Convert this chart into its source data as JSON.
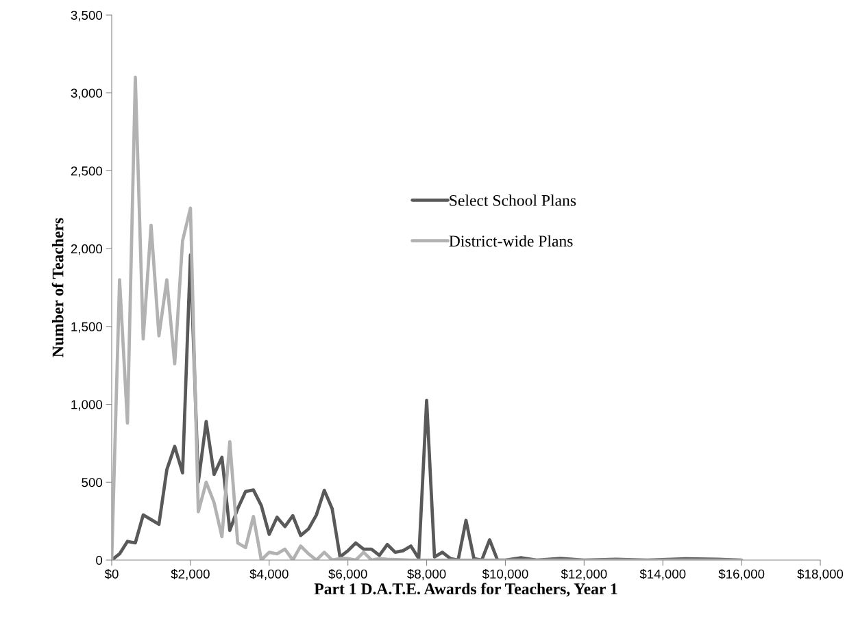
{
  "chart_data": {
    "type": "line",
    "xlabel": "Part 1 D.A.T.E. Awards for Teachers, Year 1",
    "ylabel": "Number of Teachers",
    "xlim": [
      0,
      18000
    ],
    "xticks": [
      {
        "value": 0,
        "label": "$0"
      },
      {
        "value": 2000,
        "label": "$2,000"
      },
      {
        "value": 4000,
        "label": "$4,000"
      },
      {
        "value": 6000,
        "label": "$6,000"
      },
      {
        "value": 8000,
        "label": "$8,000"
      },
      {
        "value": 10000,
        "label": "$10,000"
      },
      {
        "value": 12000,
        "label": "$12,000"
      },
      {
        "value": 14000,
        "label": "$14,000"
      },
      {
        "value": 16000,
        "label": "$16,000"
      },
      {
        "value": 18000,
        "label": "$18,000"
      }
    ],
    "ylim": [
      0,
      3500
    ],
    "yticks": [
      0,
      500,
      {
        "value": 1000,
        "label": "1,000"
      },
      {
        "value": 1500,
        "label": "1,500"
      },
      {
        "value": 2000,
        "label": "2,000"
      },
      {
        "value": 2500,
        "label": "2,500"
      },
      {
        "value": 3000,
        "label": "3,000"
      },
      {
        "value": 3500,
        "label": "3,500"
      }
    ],
    "grid": false,
    "legend": "center",
    "marker": "none",
    "line_style": "solid",
    "series": [
      {
        "name": "Select School Plans",
        "color": "#595959",
        "x": [
          0,
          200,
          400,
          600,
          800,
          1000,
          1200,
          1400,
          1600,
          1800,
          2000,
          2200,
          2400,
          2600,
          2800,
          3000,
          3200,
          3400,
          3600,
          3800,
          4000,
          4200,
          4400,
          4600,
          4800,
          5000,
          5200,
          5400,
          5600,
          5800,
          6000,
          6200,
          6400,
          6600,
          6800,
          7000,
          7200,
          7400,
          7600,
          7800,
          8000,
          8200,
          8400,
          8600,
          8800,
          9000,
          9200,
          9400,
          9600,
          9800,
          10000,
          10400,
          10800,
          11400,
          12000,
          12800,
          13600,
          14600,
          15400,
          16000
        ],
        "values": [
          0,
          40,
          120,
          110,
          290,
          260,
          230,
          580,
          730,
          560,
          1960,
          500,
          890,
          550,
          660,
          190,
          330,
          440,
          450,
          350,
          165,
          275,
          215,
          285,
          158,
          200,
          290,
          448,
          330,
          20,
          60,
          110,
          70,
          70,
          30,
          100,
          50,
          60,
          90,
          10,
          1025,
          20,
          50,
          10,
          0,
          255,
          10,
          0,
          130,
          0,
          0,
          15,
          0,
          10,
          0,
          5,
          0,
          8,
          5,
          0
        ]
      },
      {
        "name": "District-wide Plans",
        "color": "#b2b2b2",
        "x": [
          0,
          200,
          400,
          600,
          800,
          1000,
          1200,
          1400,
          1600,
          1800,
          2000,
          2200,
          2400,
          2600,
          2800,
          3000,
          3200,
          3400,
          3600,
          3800,
          4000,
          4200,
          4400,
          4600,
          4800,
          5000,
          5200,
          5400,
          5600,
          5800,
          6000,
          6200,
          6400,
          6600,
          6800,
          7000,
          7600,
          8400,
          9000,
          10000,
          11000,
          12000,
          14000,
          16000
        ],
        "values": [
          0,
          1800,
          880,
          3100,
          1420,
          2150,
          1440,
          1800,
          1260,
          2050,
          2260,
          310,
          500,
          370,
          150,
          760,
          110,
          80,
          280,
          0,
          50,
          40,
          70,
          0,
          90,
          40,
          0,
          50,
          0,
          10,
          10,
          0,
          50,
          0,
          10,
          5,
          0,
          0,
          0,
          0,
          0,
          0,
          0,
          0
        ]
      }
    ]
  }
}
